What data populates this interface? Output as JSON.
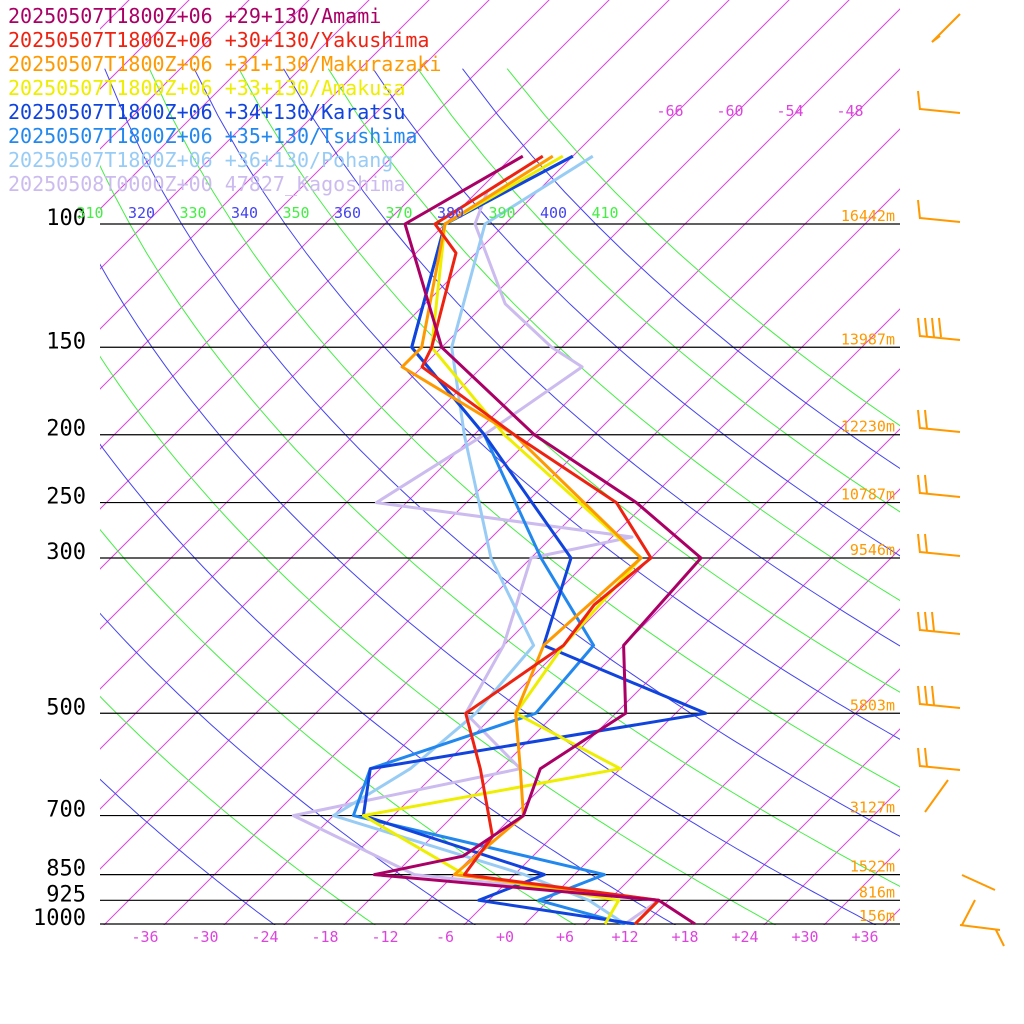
{
  "chart_data": {
    "type": "line",
    "subtype": "skew-T log-P sounding (dewpoint-like profiles)",
    "legend": [
      {
        "label": "20250507T1800Z+06 +29+130/Amami",
        "color": "#aa0066"
      },
      {
        "label": "20250507T1800Z+06 +30+130/Yakushima",
        "color": "#ee2211"
      },
      {
        "label": "20250507T1800Z+06 +31+130/Makurazaki",
        "color": "#ff9900"
      },
      {
        "label": "20250507T1800Z+06 +33+130/Amakusa",
        "color": "#eeee00"
      },
      {
        "label": "20250507T1800Z+06 +34+130/Karatsu",
        "color": "#1144dd"
      },
      {
        "label": "20250507T1800Z+06 +35+130/Tsushima",
        "color": "#2288ee"
      },
      {
        "label": "20250507T1800Z+06 +36+130/Pohang",
        "color": "#99ccf5"
      },
      {
        "label": "20250508T0000Z+00 47827_Kagoshima",
        "color": "#ccbbee"
      }
    ],
    "pressure_levels": [
      {
        "p": 100,
        "label": "100",
        "height": "16442m"
      },
      {
        "p": 150,
        "label": "150",
        "height": "13987m"
      },
      {
        "p": 200,
        "label": "200",
        "height": "12230m"
      },
      {
        "p": 250,
        "label": "250",
        "height": "10787m"
      },
      {
        "p": 300,
        "label": "300",
        "height": "9546m"
      },
      {
        "p": 500,
        "label": "500",
        "height": "5803m"
      },
      {
        "p": 700,
        "label": "700",
        "height": "3127m"
      },
      {
        "p": 850,
        "label": "850",
        "height": "1522m"
      },
      {
        "p": 925,
        "label": "925",
        "height": "816m"
      },
      {
        "p": 1000,
        "label": "1000",
        "height": "156m"
      }
    ],
    "x_ticks": [
      "-36",
      "-30",
      "-24",
      "-18",
      "-12",
      "-6",
      "+0",
      "+6",
      "+12",
      "+18",
      "+24",
      "+30",
      "+36"
    ],
    "xlim": [
      -40,
      40
    ],
    "isotherm_labels_top": [
      "-66",
      "-60",
      "-54",
      "-48"
    ],
    "theta_labels": [
      "310",
      "320",
      "330",
      "340",
      "350",
      "360",
      "370",
      "380",
      "390",
      "400",
      "410"
    ],
    "series": [
      {
        "name": "20250507T1800Z+06 +29+130/Amami",
        "color": "#aa0066",
        "points": [
          [
            1000,
            19
          ],
          [
            925,
            13
          ],
          [
            850,
            -18
          ],
          [
            800,
            -11
          ],
          [
            700,
            -9
          ],
          [
            600,
            -12
          ],
          [
            500,
            -9
          ],
          [
            400,
            -16
          ],
          [
            300,
            -17
          ],
          [
            250,
            -29
          ],
          [
            200,
            -46
          ],
          [
            150,
            -64
          ],
          [
            100,
            -80
          ],
          [
            80,
            -75
          ]
        ]
      },
      {
        "name": "20250507T1800Z+06 +30+130/Yakushima",
        "color": "#ee2211",
        "points": [
          [
            1000,
            13
          ],
          [
            925,
            13
          ],
          [
            850,
            -9
          ],
          [
            750,
            -10
          ],
          [
            600,
            -18
          ],
          [
            500,
            -25
          ],
          [
            400,
            -22
          ],
          [
            350,
            -23
          ],
          [
            300,
            -22
          ],
          [
            250,
            -31
          ],
          [
            200,
            -48
          ],
          [
            160,
            -64
          ],
          [
            150,
            -65
          ],
          [
            110,
            -72
          ],
          [
            100,
            -77
          ],
          [
            80,
            -73
          ]
        ]
      },
      {
        "name": "20250507T1800Z+06 +31+130/Makurazaki",
        "color": "#ff9900",
        "points": [
          [
            1000,
            13
          ],
          [
            925,
            13
          ],
          [
            850,
            -10
          ],
          [
            700,
            -9
          ],
          [
            600,
            -14
          ],
          [
            500,
            -20
          ],
          [
            400,
            -24
          ],
          [
            300,
            -23
          ],
          [
            200,
            -48
          ],
          [
            160,
            -66
          ],
          [
            150,
            -66
          ],
          [
            100,
            -76
          ],
          [
            80,
            -72
          ]
        ]
      },
      {
        "name": "20250507T1800Z+06 +33+130/Amakusa",
        "color": "#eeee00",
        "points": [
          [
            1000,
            10
          ],
          [
            925,
            9
          ],
          [
            850,
            -9
          ],
          [
            700,
            -25
          ],
          [
            600,
            -4
          ],
          [
            500,
            -20
          ],
          [
            400,
            -22
          ],
          [
            300,
            -23
          ],
          [
            200,
            -49
          ],
          [
            150,
            -65
          ],
          [
            100,
            -76
          ],
          [
            80,
            -71
          ]
        ]
      },
      {
        "name": "20250507T1800Z+06 +34+130/Karatsu",
        "color": "#1144dd",
        "points": [
          [
            1000,
            13
          ],
          [
            925,
            -5
          ],
          [
            850,
            -1
          ],
          [
            700,
            -25
          ],
          [
            600,
            -29
          ],
          [
            500,
            -1
          ],
          [
            400,
            -24
          ],
          [
            300,
            -30
          ],
          [
            200,
            -51
          ],
          [
            150,
            -67
          ],
          [
            100,
            -76
          ],
          [
            80,
            -70
          ]
        ]
      },
      {
        "name": "20250507T1800Z+06 +35+130/Tsushima",
        "color": "#2288ee",
        "points": [
          [
            1000,
            12
          ],
          [
            925,
            1
          ],
          [
            850,
            5
          ],
          [
            700,
            -26
          ],
          [
            600,
            -29
          ],
          [
            500,
            -18
          ],
          [
            400,
            -19
          ],
          [
            300,
            -33
          ],
          [
            200,
            -51
          ],
          [
            150,
            -67
          ],
          [
            100,
            -76
          ],
          [
            80,
            -70
          ]
        ]
      },
      {
        "name": "20250507T1800Z+06 +36+130/Pohang",
        "color": "#99ccf5",
        "points": [
          [
            1000,
            12
          ],
          [
            925,
            6
          ],
          [
            850,
            -3
          ],
          [
            700,
            -28
          ],
          [
            600,
            -25
          ],
          [
            500,
            -24
          ],
          [
            400,
            -25
          ],
          [
            300,
            -38
          ],
          [
            200,
            -53
          ],
          [
            150,
            -63
          ],
          [
            100,
            -72
          ],
          [
            80,
            -68
          ]
        ]
      },
      {
        "name": "20250508T0000Z+00 47827_Kagoshima",
        "color": "#ccbbee",
        "points": [
          [
            1000,
            12
          ],
          [
            925,
            13
          ],
          [
            850,
            -14
          ],
          [
            700,
            -32
          ],
          [
            600,
            -14
          ],
          [
            500,
            -25
          ],
          [
            400,
            -28
          ],
          [
            300,
            -34
          ],
          [
            280,
            -26
          ],
          [
            250,
            -55
          ],
          [
            200,
            -51
          ],
          [
            160,
            -48
          ],
          [
            150,
            -53
          ],
          [
            130,
            -62
          ],
          [
            100,
            -73
          ],
          [
            90,
            -75
          ]
        ]
      }
    ]
  },
  "wind_barbs_color": "#ff9900"
}
